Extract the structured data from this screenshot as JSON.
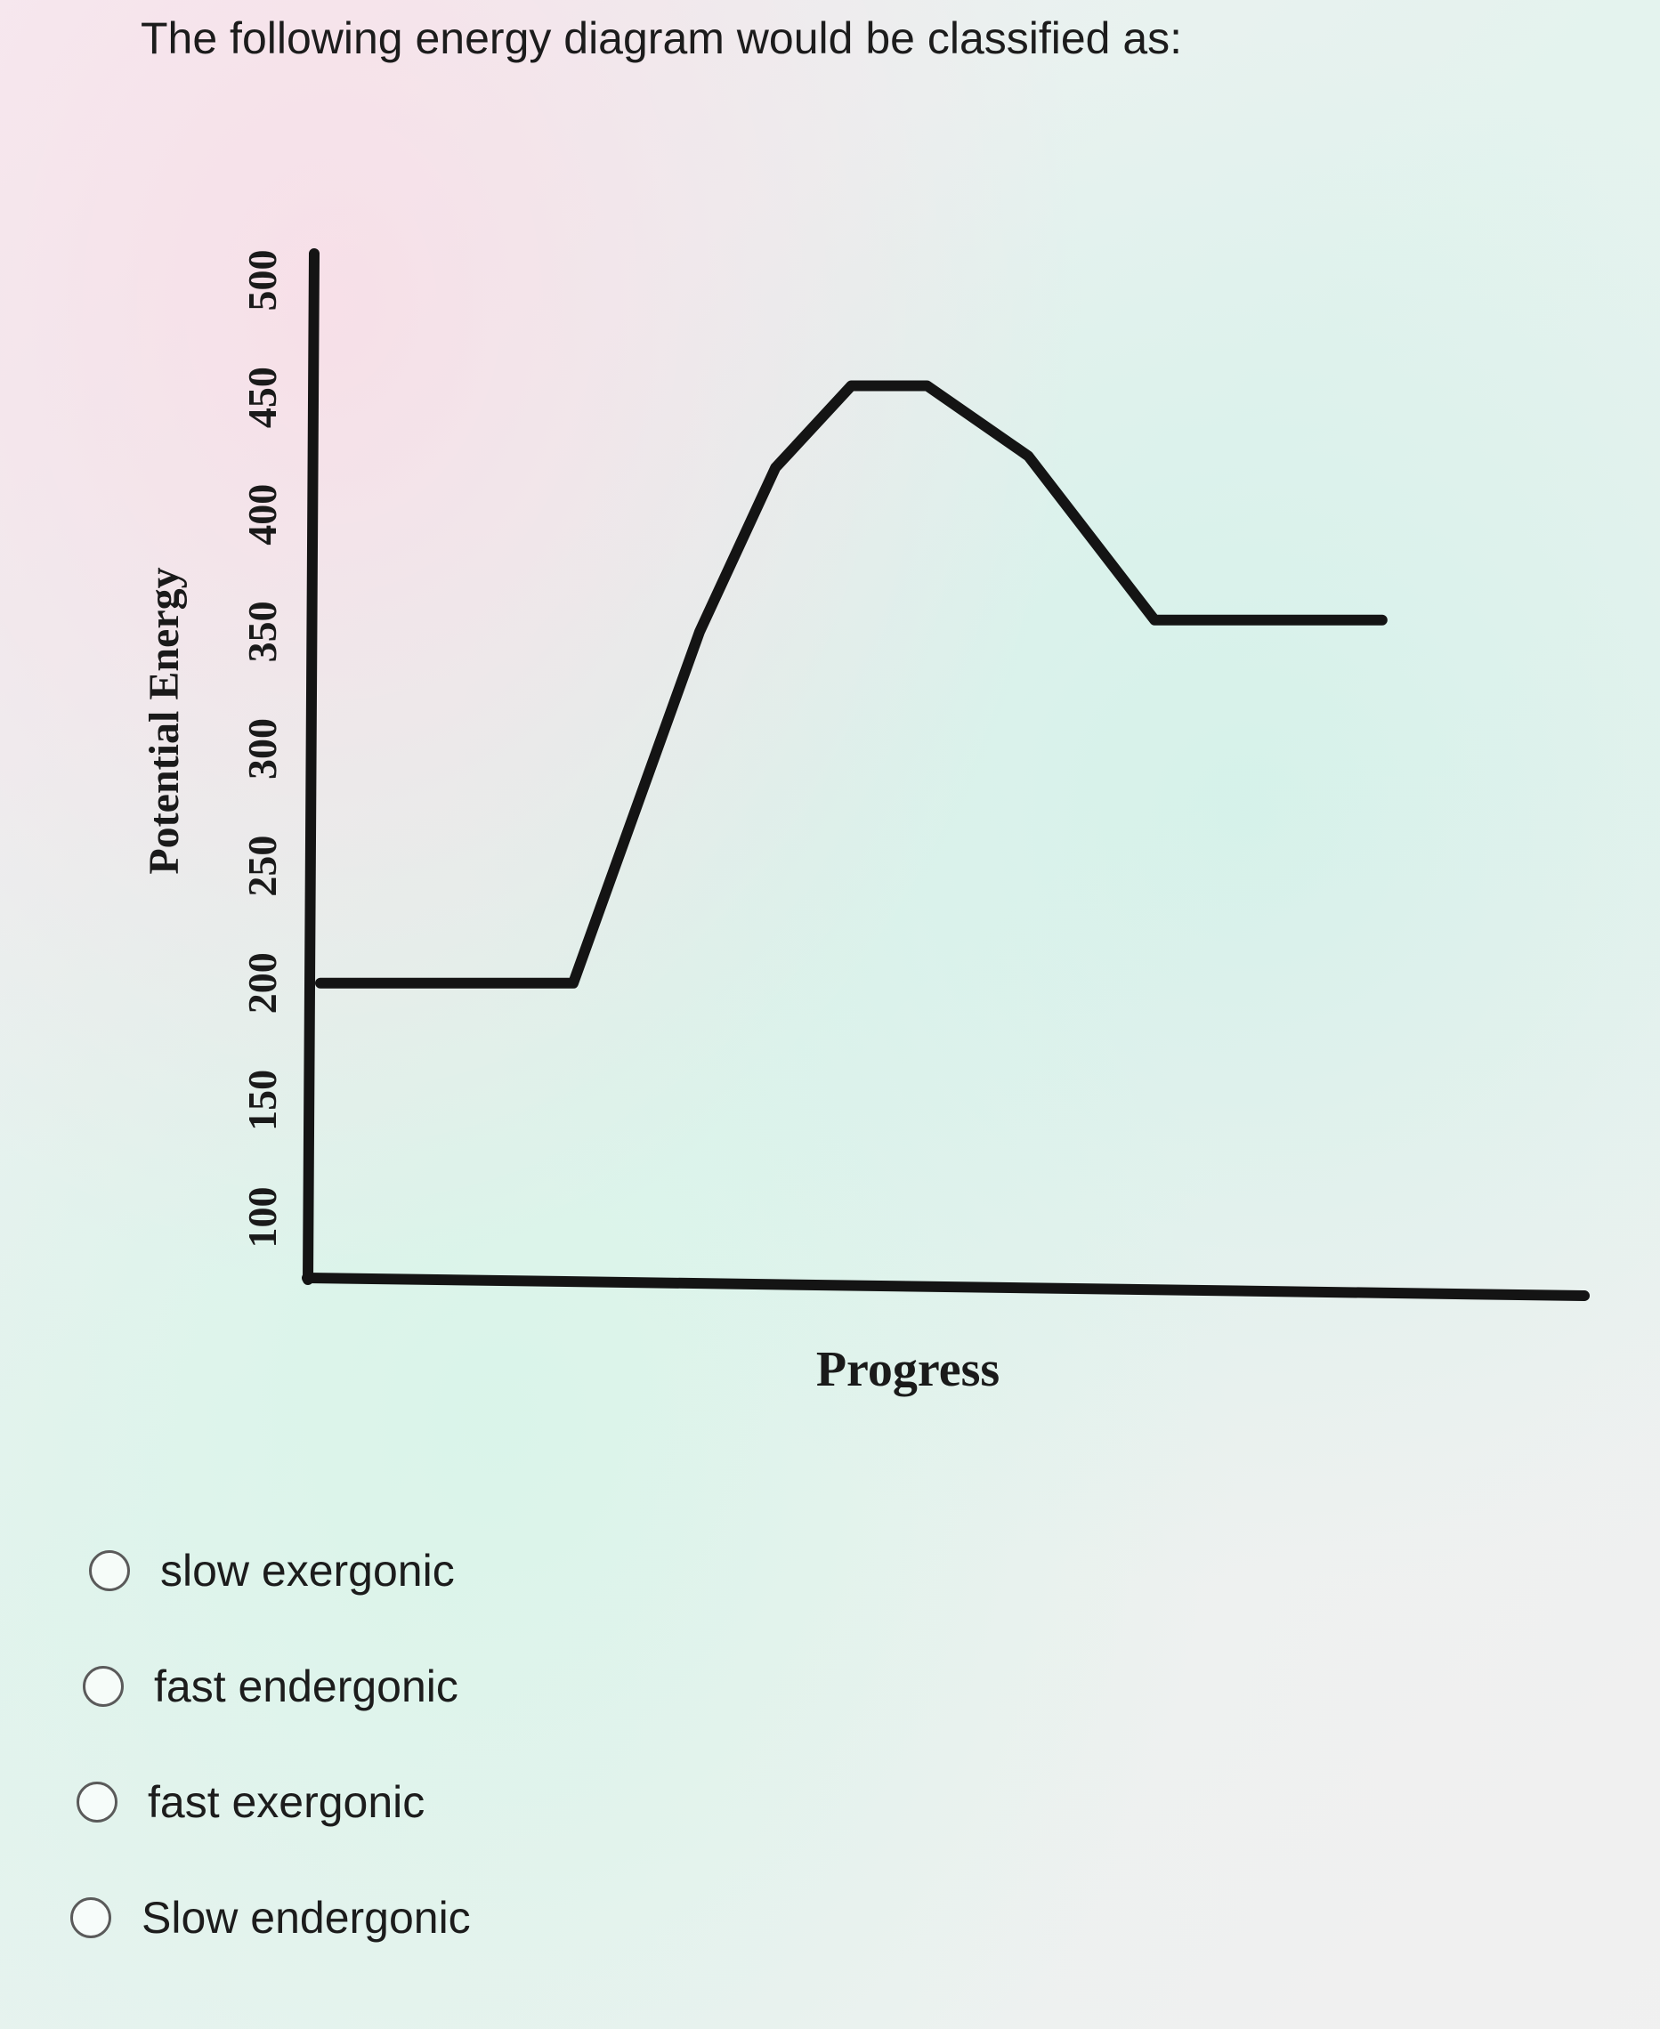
{
  "question": {
    "text": "The following energy diagram would be classified as:"
  },
  "chart_data": {
    "type": "line",
    "title": "",
    "xlabel": "Progress",
    "ylabel": "Potential Energy",
    "y_ticks": [
      "100",
      "150",
      "200",
      "250",
      "300",
      "350",
      "400",
      "450",
      "500"
    ],
    "ylim": [
      100,
      500
    ],
    "x_ticks": [],
    "series": [
      {
        "x": [
          0.0,
          0.2,
          0.26,
          0.3,
          0.36,
          0.42,
          0.48,
          0.56,
          0.66,
          0.84
        ],
        "y": [
          200,
          200,
          290,
          350,
          420,
          455,
          455,
          425,
          355,
          355
        ]
      }
    ],
    "grid": false,
    "legend": "none",
    "line_color": "#141414"
  },
  "options": [
    {
      "label": "slow exergonic",
      "selected": false
    },
    {
      "label": "fast endergonic",
      "selected": false
    },
    {
      "label": "fast exergonic",
      "selected": false
    },
    {
      "label": "Slow endergonic",
      "selected": false
    }
  ]
}
